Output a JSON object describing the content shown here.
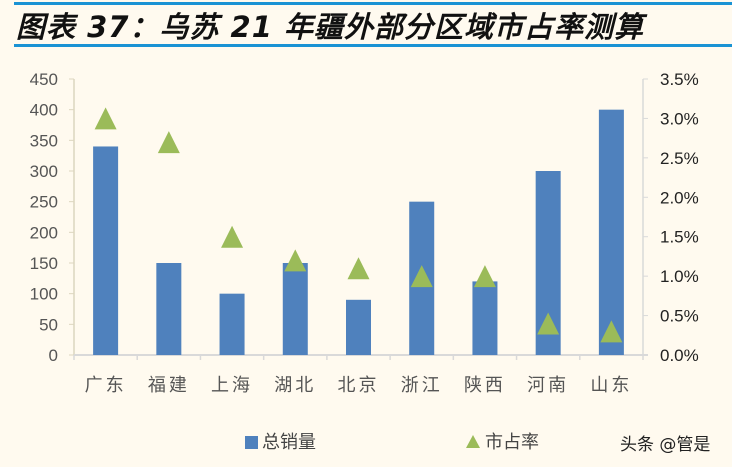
{
  "title": "图表 37：乌苏 21 年疆外部分区域市占率测算",
  "colors": {
    "bar": "#4f81bd",
    "marker": "#9bbb59",
    "title_rule": "#1a93d4",
    "axis": "#d9d9d9",
    "background": "#fffaef"
  },
  "legend": {
    "bar_label": "总销量",
    "marker_label": "市占率"
  },
  "watermark": "头条 @管是",
  "chart_data": {
    "type": "bar",
    "title": "图表 37：乌苏 21 年疆外部分区域市占率测算",
    "categories": [
      "广东",
      "福建",
      "上海",
      "湖北",
      "北京",
      "浙江",
      "陕西",
      "河南",
      "山东"
    ],
    "series": [
      {
        "name": "总销量",
        "type": "bar",
        "axis": "left",
        "values": [
          340,
          150,
          100,
          150,
          90,
          250,
          120,
          300,
          400
        ]
      },
      {
        "name": "市占率",
        "type": "scatter-triangle",
        "axis": "right",
        "values": [
          3.0,
          2.7,
          1.5,
          1.2,
          1.1,
          1.0,
          1.0,
          0.4,
          0.3
        ],
        "unit": "%"
      }
    ],
    "left_axis": {
      "ylim": [
        0,
        450
      ],
      "ticks": [
        "0",
        "50",
        "100",
        "150",
        "200",
        "250",
        "300",
        "350",
        "400",
        "450"
      ]
    },
    "right_axis": {
      "ylim": [
        0,
        3.5
      ],
      "ticks": [
        "0.0%",
        "0.5%",
        "1.0%",
        "1.5%",
        "2.0%",
        "2.5%",
        "3.0%",
        "3.5%"
      ]
    },
    "xlabel": "",
    "ylabel": "",
    "grid": false,
    "legend_position": "bottom"
  }
}
